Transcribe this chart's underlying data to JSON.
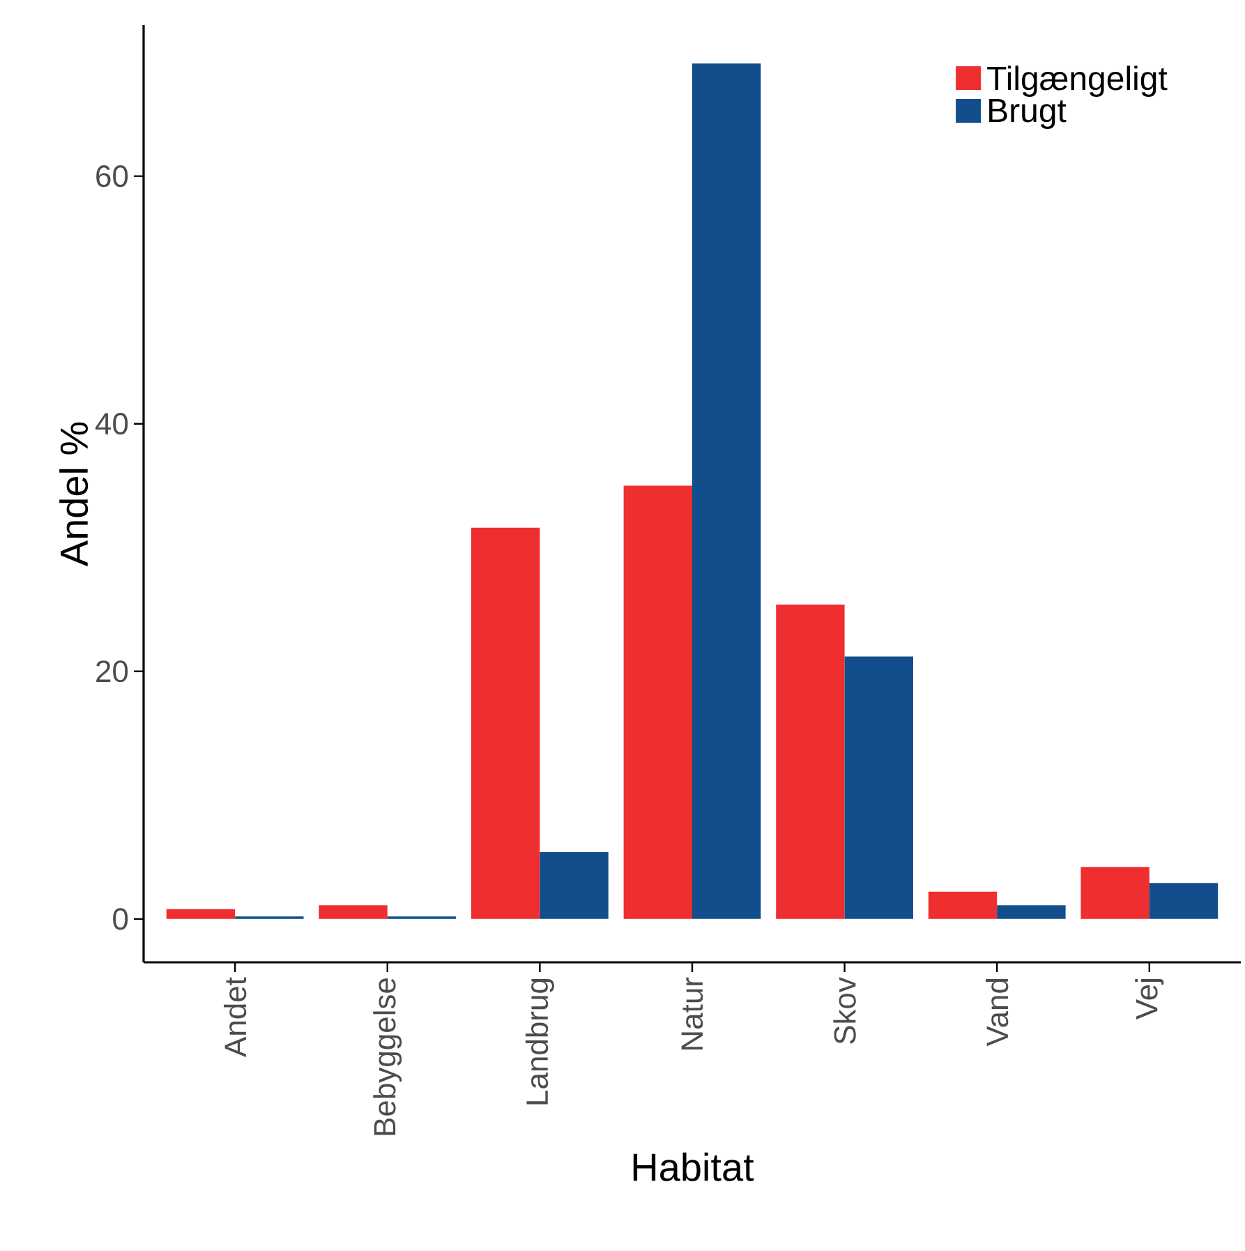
{
  "chart_data": {
    "type": "bar",
    "xlabel": "Habitat",
    "ylabel": "Andel %",
    "categories": [
      "Andet",
      "Bebyggelse",
      "Landbrug",
      "Natur",
      "Skov",
      "Vand",
      "Vej"
    ],
    "series": [
      {
        "name": "Tilgængeligt",
        "color": "#ee2e2f",
        "values": [
          0.8,
          1.1,
          31.6,
          35.0,
          25.4,
          2.2,
          4.2
        ]
      },
      {
        "name": "Brugt",
        "color": "#114e8b",
        "values": [
          0.2,
          0.2,
          5.4,
          69.1,
          21.2,
          1.1,
          2.9
        ]
      }
    ],
    "ylim": [
      -3.5,
      72.2
    ],
    "yticks": [
      0,
      20,
      40,
      60
    ],
    "grid": false,
    "legend": "top right"
  }
}
